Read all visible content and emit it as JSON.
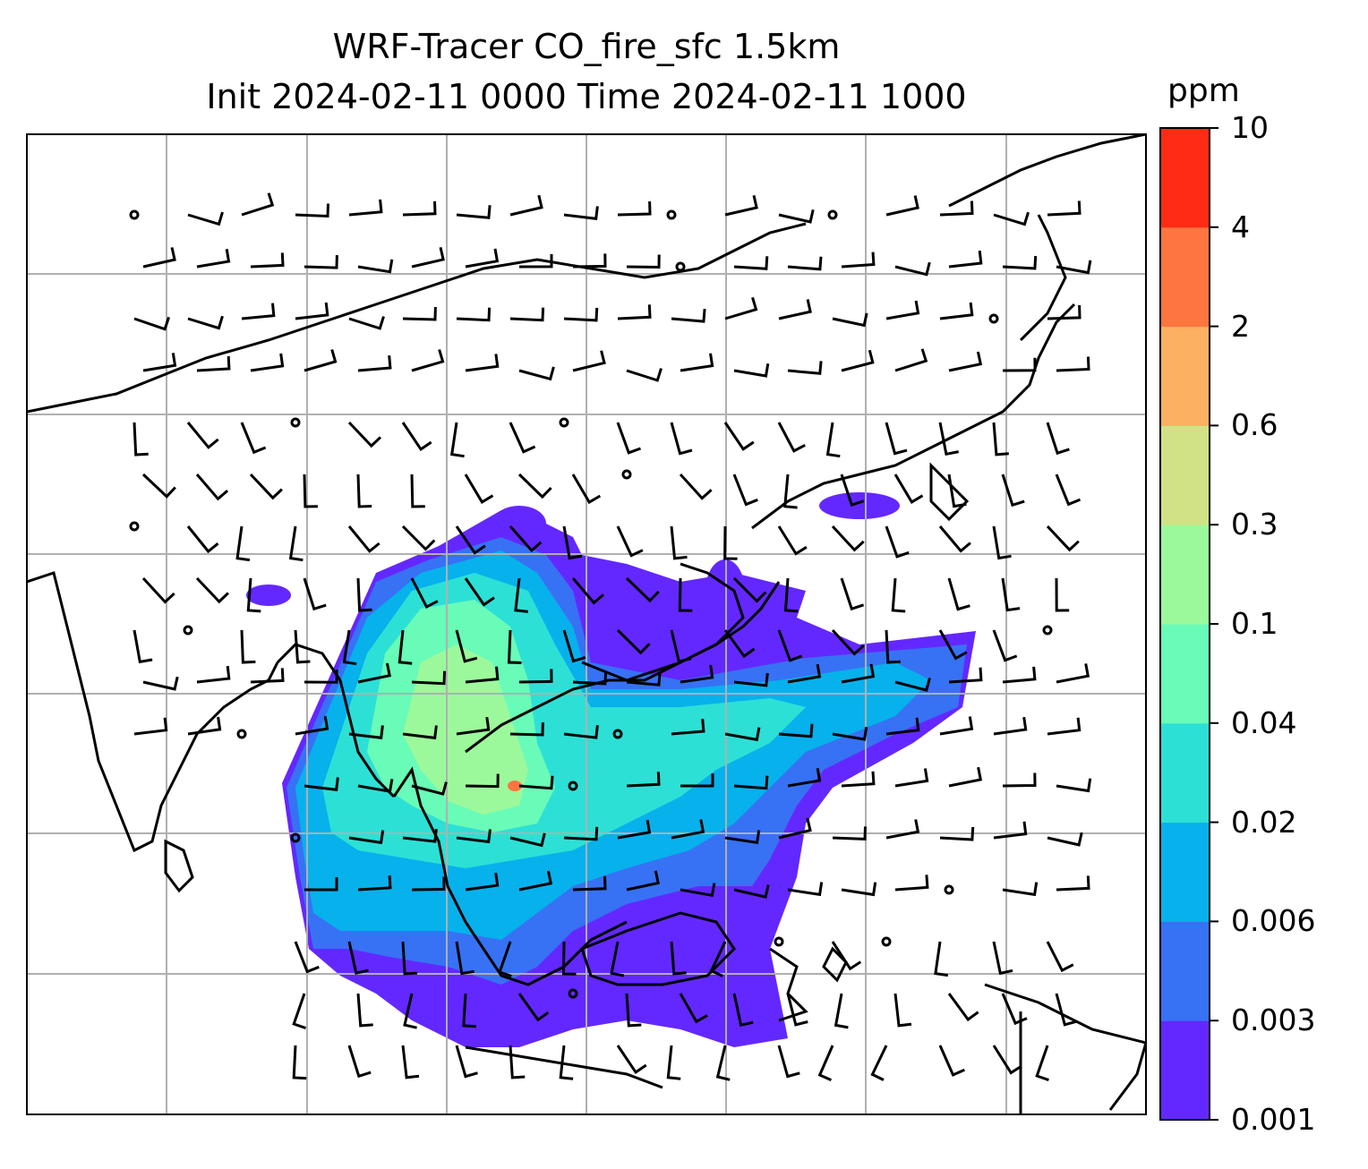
{
  "title_line1": "WRF-Tracer CO_fire_sfc 1.5km",
  "title_line2": "Init 2024-02-11 0000 Time 2024-02-11 1000",
  "colorbar": {
    "unit": "ppm",
    "levels": [
      "0.001",
      "0.003",
      "0.006",
      "0.02",
      "0.04",
      "0.1",
      "0.3",
      "0.6",
      "2",
      "4",
      "10"
    ],
    "colors": [
      "#6328ff",
      "#3772f4",
      "#07b1ec",
      "#2de0d6",
      "#69fbb8",
      "#9cf99b",
      "#d0e285",
      "#fbb062",
      "#ff7540",
      "#ff2b14"
    ]
  },
  "map": {
    "background": "#ffffff",
    "coastline_color": "#000000",
    "gridline_color": "#b0b0b0",
    "plume_colors": {
      "outer": "#6328ff",
      "low": "#3772f4",
      "mid": "#07b1ec",
      "high": "#2de0d6",
      "higher": "#69fbb8",
      "peak": "#9cf99b",
      "hot": "#ff7540"
    }
  }
}
